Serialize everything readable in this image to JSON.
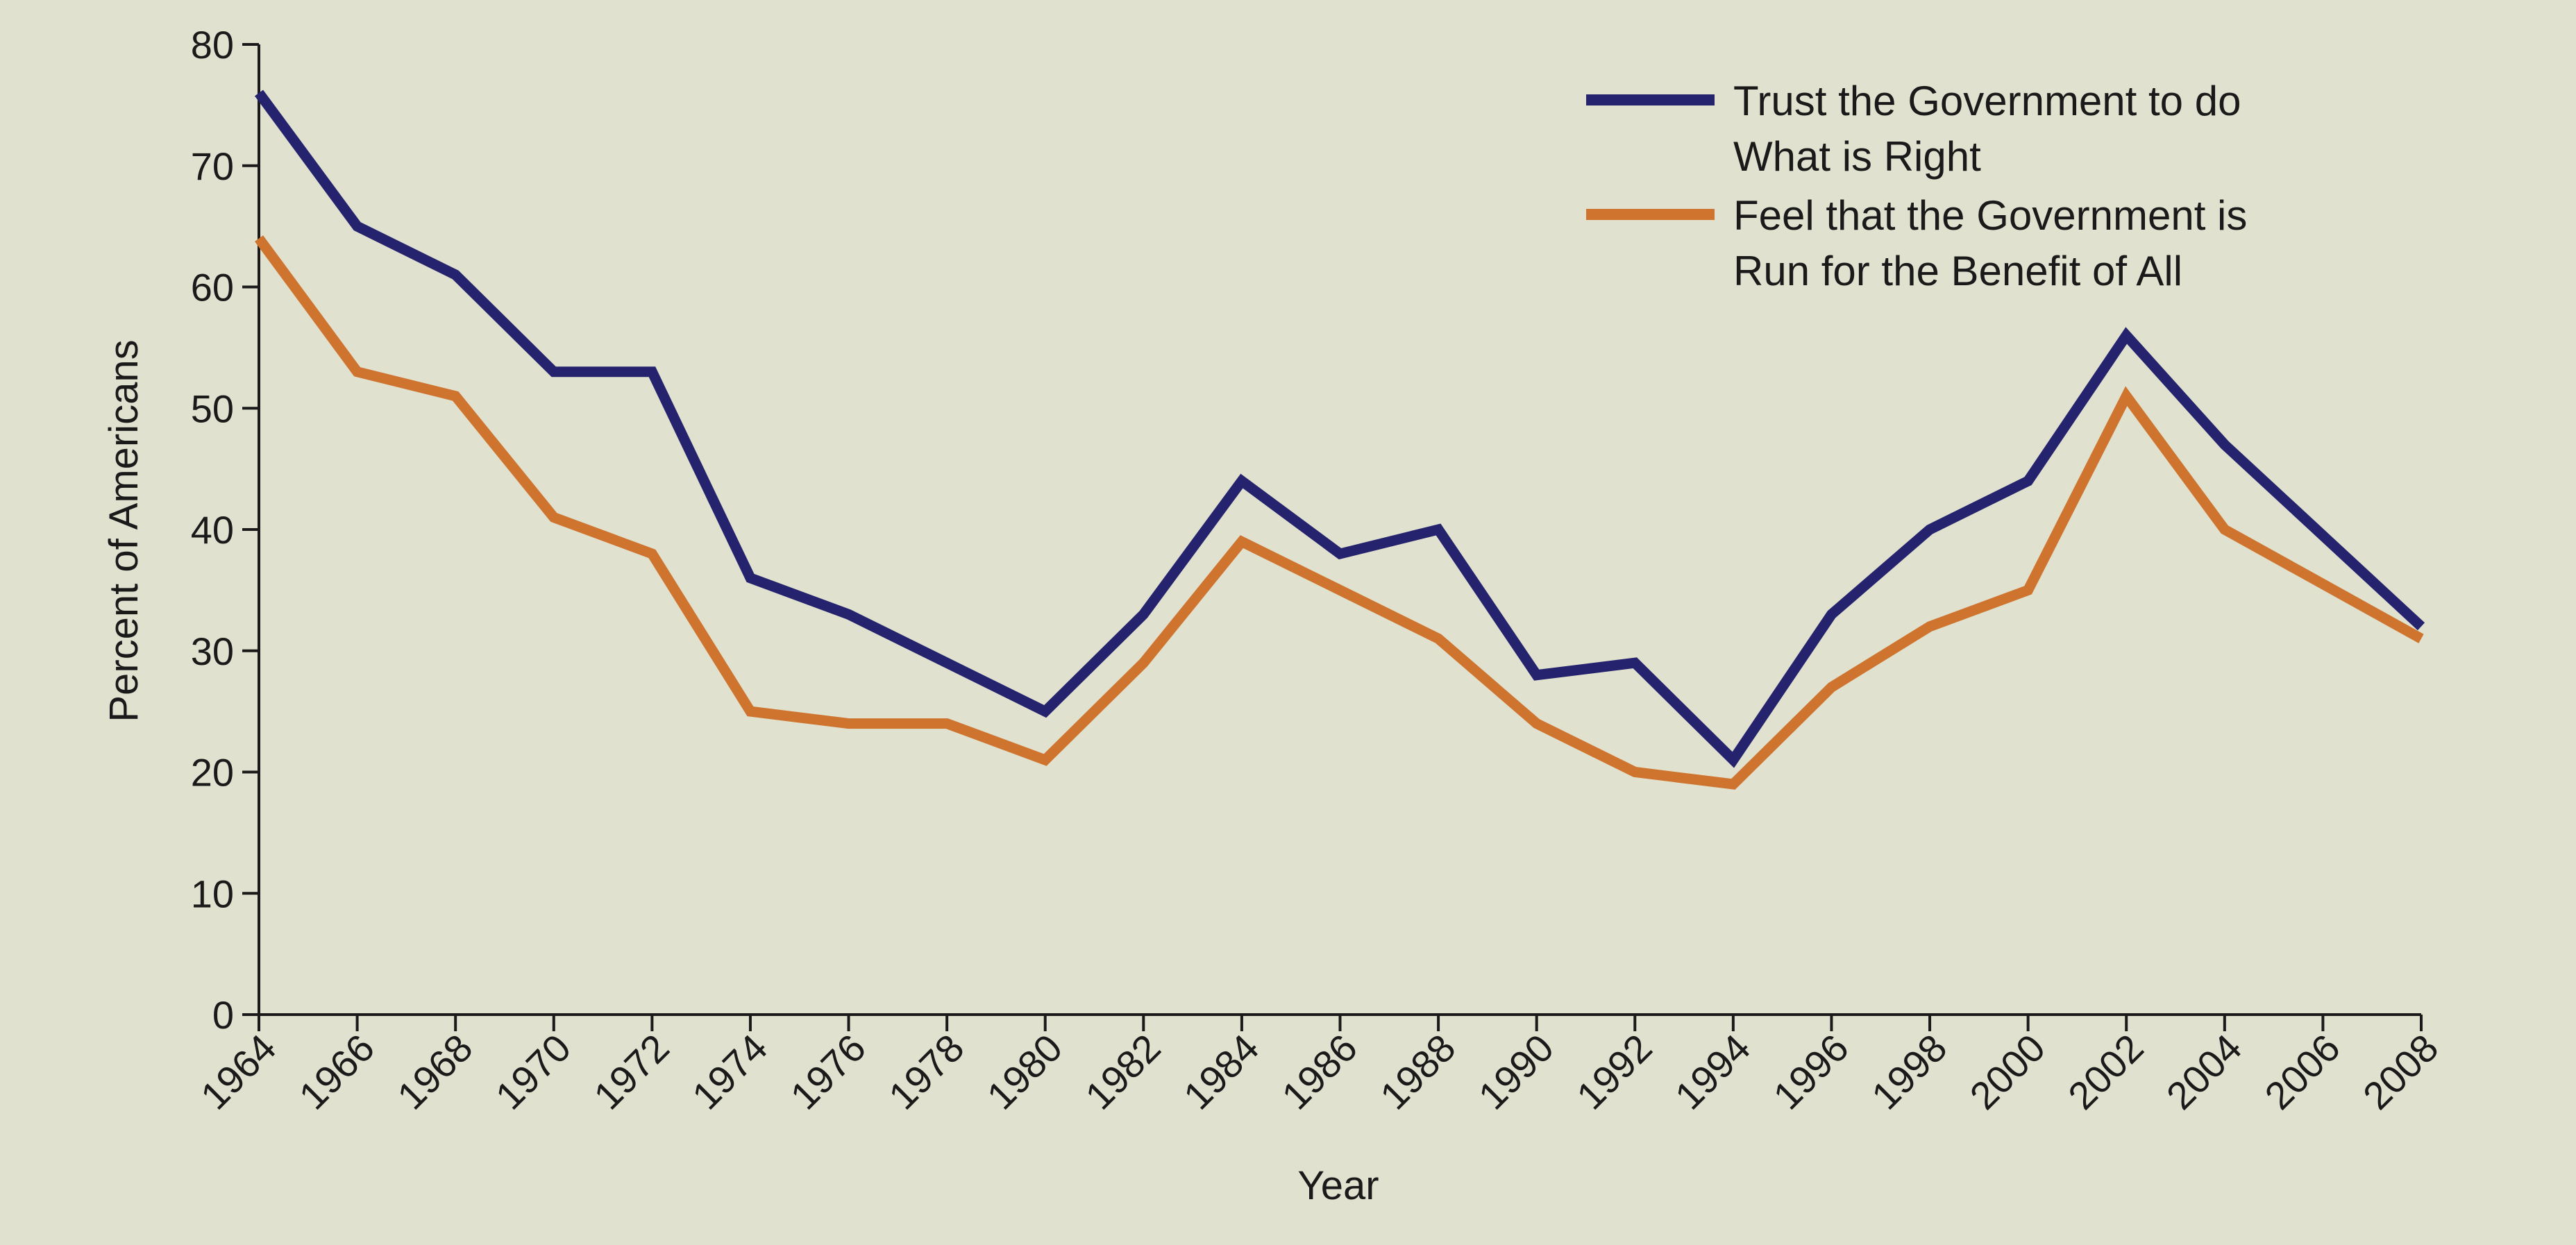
{
  "chart_data": {
    "type": "line",
    "title": "",
    "xlabel": "Year",
    "ylabel": "Percent of Americans",
    "ylim": [
      0,
      80
    ],
    "yticks": [
      0,
      10,
      20,
      30,
      40,
      50,
      60,
      70,
      80
    ],
    "x": [
      1964,
      1966,
      1968,
      1970,
      1972,
      1974,
      1976,
      1978,
      1980,
      1982,
      1984,
      1986,
      1988,
      1990,
      1992,
      1994,
      1996,
      1998,
      2000,
      2002,
      2004,
      2006,
      2008
    ],
    "xtick_labels": [
      "1964",
      "1966",
      "1968",
      "1970",
      "1972",
      "1974",
      "1976",
      "1978",
      "1980",
      "1982",
      "1984",
      "1986",
      "1988",
      "1990",
      "1992",
      "1994",
      "1996",
      "1998",
      "2000",
      "2002",
      "2004",
      "2006",
      "2008"
    ],
    "grid": false,
    "legend_position": "top-right",
    "series": [
      {
        "name": "Trust the Government to do What is Right",
        "legend_lines": [
          "Trust the Government to do",
          "What is Right"
        ],
        "color": "#25236e",
        "values": [
          76,
          65,
          61,
          53,
          53,
          36,
          33,
          29,
          25,
          33,
          44,
          38,
          40,
          28,
          29,
          21,
          33,
          40,
          44,
          56,
          47,
          39.5,
          32
        ]
      },
      {
        "name": "Feel that the Government is Run for the Benefit of All",
        "legend_lines": [
          "Feel that the Government is",
          "Run for the Benefit of All"
        ],
        "color": "#cf742f",
        "values": [
          64,
          53,
          51,
          41,
          38,
          25,
          24,
          24,
          21,
          29,
          39,
          35,
          31,
          24,
          20,
          19,
          27,
          32,
          35,
          51,
          40,
          35.5,
          31
        ]
      }
    ]
  }
}
